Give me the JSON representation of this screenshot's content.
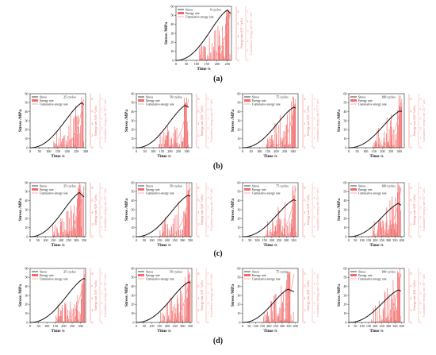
{
  "figure": {
    "axis_labels": {
      "x": "Time /s",
      "y_left": "Stress /MPa",
      "y_mid": "Energy rate /(10⁻⁴ aJ/s)",
      "y_right": "Cumulative energy rate /10⁻⁴ aJ/s"
    },
    "legend_labels": [
      "Stress",
      "Energy rate",
      "Cumulative energy rate"
    ],
    "colors": {
      "stress": "#111111",
      "energy": "#f26b6b",
      "cumulative": "#ff9a9a"
    },
    "row_labels": [
      "(a)",
      "(b)",
      "(c)",
      "(d)"
    ]
  },
  "chart_data": [
    {
      "type": "line",
      "row": 0,
      "col": 0,
      "cycles_label": "0 cycles",
      "xlim": [
        0,
        270
      ],
      "x_ticks": [
        0,
        50,
        100,
        150,
        200,
        250
      ],
      "ylim": [
        0,
        60
      ],
      "y_ticks": [
        0,
        10,
        20,
        30,
        40,
        50,
        60
      ],
      "r1_ticks": [
        0,
        2,
        4,
        6,
        8
      ],
      "r2_ticks": [
        0,
        1,
        2,
        3,
        4,
        5
      ],
      "peak": {
        "x": 250,
        "y": 56
      },
      "end": {
        "x": 265,
        "y": 52
      }
    },
    {
      "type": "line",
      "row": 1,
      "col": 0,
      "cycles_label": "25 cycles",
      "xlim": [
        0,
        300
      ],
      "x_ticks": [
        0,
        50,
        100,
        150,
        200,
        250,
        300
      ],
      "ylim": [
        0,
        60
      ],
      "y_ticks": [
        0,
        10,
        20,
        30,
        40,
        50,
        60
      ],
      "r1_ticks": [
        0,
        2,
        4,
        6,
        8
      ],
      "r2_ticks": [
        0,
        1,
        2,
        3,
        4,
        5
      ],
      "peak": {
        "x": 280,
        "y": 50
      },
      "end": {
        "x": 290,
        "y": 48
      }
    },
    {
      "type": "line",
      "row": 1,
      "col": 1,
      "cycles_label": "50 cycles",
      "xlim": [
        0,
        330
      ],
      "x_ticks": [
        0,
        50,
        100,
        150,
        200,
        250,
        300
      ],
      "ylim": [
        0,
        60
      ],
      "y_ticks": [
        0,
        10,
        20,
        30,
        40,
        50,
        60
      ],
      "r1_ticks": [
        0,
        2,
        4,
        6,
        8
      ],
      "r2_ticks": [
        0,
        1,
        2,
        3,
        4,
        5
      ],
      "peak": {
        "x": 290,
        "y": 47
      },
      "end": {
        "x": 310,
        "y": 45
      }
    },
    {
      "type": "line",
      "row": 1,
      "col": 2,
      "cycles_label": "75 cycles",
      "xlim": [
        0,
        330
      ],
      "x_ticks": [
        0,
        50,
        100,
        150,
        200,
        250,
        300
      ],
      "ylim": [
        0,
        60
      ],
      "y_ticks": [
        0,
        10,
        20,
        30,
        40,
        50,
        60
      ],
      "r1_ticks": [
        0,
        2,
        4,
        6,
        8
      ],
      "r2_ticks": [
        0,
        1,
        2,
        3,
        4,
        5
      ],
      "peak": {
        "x": 305,
        "y": 45
      },
      "end": {
        "x": 315,
        "y": 44
      }
    },
    {
      "type": "line",
      "row": 1,
      "col": 3,
      "cycles_label": "100 cycles",
      "xlim": [
        0,
        330
      ],
      "x_ticks": [
        0,
        50,
        100,
        150,
        200,
        250,
        300
      ],
      "ylim": [
        0,
        60
      ],
      "y_ticks": [
        0,
        10,
        20,
        30,
        40,
        50,
        60
      ],
      "r1_ticks": [
        0,
        2,
        4,
        6,
        8
      ],
      "r2_ticks": [
        0,
        1,
        2,
        3,
        4,
        5
      ],
      "peak": {
        "x": 305,
        "y": 41
      },
      "end": {
        "x": 315,
        "y": 40
      }
    },
    {
      "type": "line",
      "row": 2,
      "col": 0,
      "cycles_label": "25 cycles",
      "xlim": [
        0,
        360
      ],
      "x_ticks": [
        0,
        50,
        100,
        150,
        200,
        250,
        300,
        350
      ],
      "ylim": [
        0,
        60
      ],
      "y_ticks": [
        0,
        10,
        20,
        30,
        40,
        50,
        60
      ],
      "r1_ticks": [
        0,
        2,
        4,
        6,
        8
      ],
      "r2_ticks": [
        0,
        1,
        2,
        3,
        4,
        5
      ],
      "peak": {
        "x": 320,
        "y": 49
      },
      "end": {
        "x": 350,
        "y": 44
      }
    },
    {
      "type": "line",
      "row": 2,
      "col": 1,
      "cycles_label": "50 cycles",
      "xlim": [
        0,
        360
      ],
      "x_ticks": [
        0,
        50,
        100,
        150,
        200,
        250,
        300,
        350
      ],
      "ylim": [
        0,
        60
      ],
      "y_ticks": [
        0,
        10,
        20,
        30,
        40,
        50,
        60
      ],
      "r1_ticks": [
        0,
        2,
        4,
        6,
        8
      ],
      "r2_ticks": [
        0,
        1,
        2,
        3,
        4,
        5
      ],
      "peak": {
        "x": 335,
        "y": 46
      },
      "end": {
        "x": 350,
        "y": 45
      }
    },
    {
      "type": "line",
      "row": 2,
      "col": 2,
      "cycles_label": "75 cycles",
      "xlim": [
        0,
        380
      ],
      "x_ticks": [
        0,
        50,
        100,
        150,
        200,
        250,
        300,
        350
      ],
      "ylim": [
        0,
        60
      ],
      "y_ticks": [
        0,
        10,
        20,
        30,
        40,
        50,
        60
      ],
      "r1_ticks": [
        0,
        2,
        4,
        6,
        8
      ],
      "r2_ticks": [
        0,
        1,
        2,
        3,
        4,
        5
      ],
      "peak": {
        "x": 350,
        "y": 41
      },
      "end": {
        "x": 365,
        "y": 40
      }
    },
    {
      "type": "line",
      "row": 2,
      "col": 3,
      "cycles_label": "100 cycles",
      "xlim": [
        0,
        420
      ],
      "x_ticks": [
        0,
        50,
        100,
        150,
        200,
        250,
        300,
        350,
        400
      ],
      "ylim": [
        0,
        60
      ],
      "y_ticks": [
        0,
        10,
        20,
        30,
        40,
        50,
        60
      ],
      "r1_ticks": [
        0,
        2,
        4,
        6,
        8
      ],
      "r2_ticks": [
        0,
        1,
        2,
        3,
        4,
        5
      ],
      "peak": {
        "x": 375,
        "y": 37
      },
      "end": {
        "x": 395,
        "y": 35
      }
    },
    {
      "type": "line",
      "row": 3,
      "col": 0,
      "cycles_label": "25 cycles",
      "xlim": [
        0,
        330
      ],
      "x_ticks": [
        0,
        50,
        100,
        150,
        200,
        250,
        300
      ],
      "ylim": [
        0,
        60
      ],
      "y_ticks": [
        0,
        10,
        20,
        30,
        40,
        50,
        60
      ],
      "r1_ticks": [
        0,
        2,
        4,
        6,
        8
      ],
      "r2_ticks": [
        0,
        1,
        2,
        3,
        4,
        5
      ],
      "peak": {
        "x": 320,
        "y": 49
      },
      "end": {
        "x": 325,
        "y": 48
      }
    },
    {
      "type": "line",
      "row": 3,
      "col": 1,
      "cycles_label": "50 cycles",
      "xlim": [
        0,
        360
      ],
      "x_ticks": [
        0,
        50,
        100,
        150,
        200,
        250,
        300,
        350
      ],
      "ylim": [
        0,
        60
      ],
      "y_ticks": [
        0,
        10,
        20,
        30,
        40,
        50,
        60
      ],
      "r1_ticks": [
        0,
        2,
        4,
        6,
        8
      ],
      "r2_ticks": [
        0,
        1,
        2,
        3,
        4,
        5
      ],
      "peak": {
        "x": 340,
        "y": 45
      },
      "end": {
        "x": 350,
        "y": 44
      }
    },
    {
      "type": "line",
      "row": 3,
      "col": 2,
      "cycles_label": "75 cycles",
      "xlim": [
        0,
        420
      ],
      "x_ticks": [
        0,
        50,
        100,
        150,
        200,
        250,
        300,
        350,
        400
      ],
      "ylim": [
        0,
        60
      ],
      "y_ticks": [
        0,
        10,
        20,
        30,
        40,
        50,
        60
      ],
      "r1_ticks": [
        0,
        2,
        4,
        6,
        8
      ],
      "r2_ticks": [
        0,
        1,
        2,
        3,
        4,
        5
      ],
      "peak": {
        "x": 345,
        "y": 37
      },
      "end": {
        "x": 390,
        "y": 34
      }
    },
    {
      "type": "line",
      "row": 3,
      "col": 3,
      "cycles_label": "100 cycles",
      "xlim": [
        0,
        420
      ],
      "x_ticks": [
        0,
        50,
        100,
        150,
        200,
        250,
        300,
        350,
        400
      ],
      "ylim": [
        0,
        60
      ],
      "y_ticks": [
        0,
        10,
        20,
        30,
        40,
        50,
        60
      ],
      "r1_ticks": [
        0,
        2,
        4,
        6,
        8
      ],
      "r2_ticks": [
        0,
        1,
        2,
        3,
        4,
        5
      ],
      "peak": {
        "x": 375,
        "y": 36
      },
      "end": {
        "x": 395,
        "y": 35
      }
    }
  ]
}
